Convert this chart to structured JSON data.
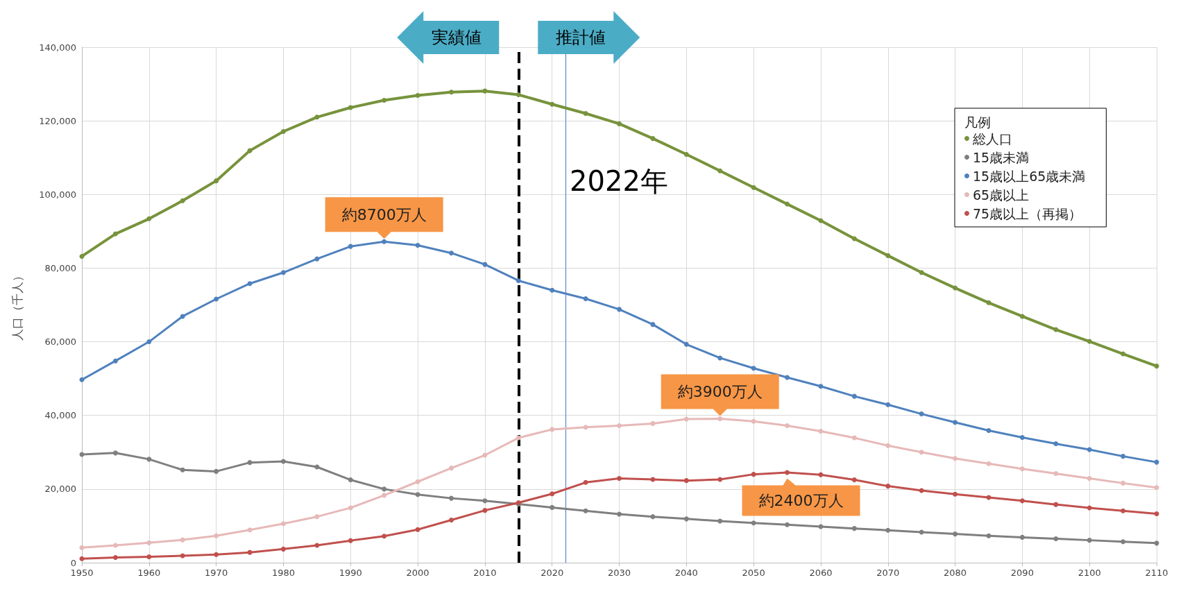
{
  "chart_data": {
    "type": "line",
    "ylabel": "人口（千人）",
    "legend_title": "凡例",
    "legend": "top right",
    "grid": true,
    "marker": "circle",
    "line_style": "solid",
    "x": [
      1950,
      1955,
      1960,
      1965,
      1970,
      1975,
      1980,
      1985,
      1990,
      1995,
      2000,
      2005,
      2010,
      2015,
      2020,
      2025,
      2030,
      2035,
      2040,
      2045,
      2050,
      2055,
      2060,
      2065,
      2070,
      2075,
      2080,
      2085,
      2090,
      2095,
      2100,
      2105,
      2110
    ],
    "xlim": [
      1950,
      2110
    ],
    "xticks": [
      1950,
      1960,
      1970,
      1980,
      1990,
      2000,
      2010,
      2020,
      2030,
      2040,
      2050,
      2060,
      2070,
      2080,
      2090,
      2100,
      2110
    ],
    "ylim": [
      0,
      140000
    ],
    "yticks": [
      0,
      {
        "value": 20000,
        "label": "20,000"
      },
      {
        "value": 40000,
        "label": "40,000"
      },
      {
        "value": 60000,
        "label": "60,000"
      },
      {
        "value": 80000,
        "label": "80,000"
      },
      {
        "value": 100000,
        "label": "100,000"
      },
      {
        "value": 120000,
        "label": "120,000"
      },
      {
        "value": 140000,
        "label": "140,000"
      }
    ],
    "series": [
      {
        "name": "総人口",
        "color": "#77933c",
        "values": [
          83200,
          89300,
          93400,
          98300,
          103700,
          111900,
          117100,
          121000,
          123600,
          125600,
          126900,
          127800,
          128100,
          127100,
          124500,
          122000,
          119200,
          115200,
          110900,
          106400,
          101900,
          97400,
          92900,
          88000,
          83400,
          78800,
          74600,
          70600,
          66900,
          63300,
          60100,
          56700,
          53400
        ]
      },
      {
        "name": "15歳未満",
        "color": "#7f7f7f",
        "values": [
          29400,
          29800,
          28100,
          25200,
          24800,
          27200,
          27500,
          26000,
          22500,
          20000,
          18500,
          17500,
          16800,
          15900,
          15000,
          14100,
          13200,
          12500,
          11900,
          11300,
          10800,
          10300,
          9800,
          9300,
          8800,
          8300,
          7800,
          7300,
          6900,
          6500,
          6100,
          5700,
          5300
        ]
      },
      {
        "name": "15歳以上65歳未満",
        "color": "#4f81bd",
        "values": [
          49700,
          54800,
          60000,
          66900,
          71600,
          75800,
          78800,
          82500,
          85900,
          87200,
          86200,
          84100,
          81000,
          76600,
          74000,
          71700,
          68800,
          64700,
          59300,
          55600,
          52800,
          50300,
          47900,
          45200,
          42900,
          40400,
          38100,
          35900,
          34000,
          32300,
          30700,
          28900,
          27300
        ]
      },
      {
        "name": "65歳以上",
        "color": "#e6b9b8",
        "values": [
          4100,
          4700,
          5400,
          6200,
          7300,
          8900,
          10600,
          12500,
          14900,
          18300,
          22000,
          25700,
          29200,
          33900,
          36200,
          36800,
          37200,
          37800,
          39000,
          39100,
          38400,
          37200,
          35700,
          33900,
          31800,
          30000,
          28300,
          26900,
          25500,
          24200,
          22900,
          21600,
          20400
        ]
      },
      {
        "name": "75歳以上（再掲）",
        "color": "#c0504d",
        "values": [
          1100,
          1400,
          1600,
          1900,
          2200,
          2800,
          3700,
          4700,
          6000,
          7200,
          9000,
          11600,
          14200,
          16300,
          18700,
          21800,
          22900,
          22600,
          22300,
          22600,
          24000,
          24500,
          23900,
          22500,
          20800,
          19600,
          18600,
          17700,
          16800,
          15800,
          14900,
          14100,
          13300
        ]
      }
    ],
    "ref_lines": [
      {
        "axis": "x",
        "value": 2015,
        "color": "#000000",
        "line_style": "dashed"
      },
      {
        "axis": "x",
        "value": 2022,
        "color": "#4472c4",
        "label": "2022年"
      }
    ],
    "annotations": [
      "実績値",
      "推計値",
      {
        "text": "約8700万人",
        "x": 1995,
        "y": 87200
      },
      {
        "text": "約3900万人",
        "x": 2045,
        "y": 39100
      },
      {
        "text": "約2400万人",
        "x": 2055,
        "y": 24500
      }
    ]
  }
}
